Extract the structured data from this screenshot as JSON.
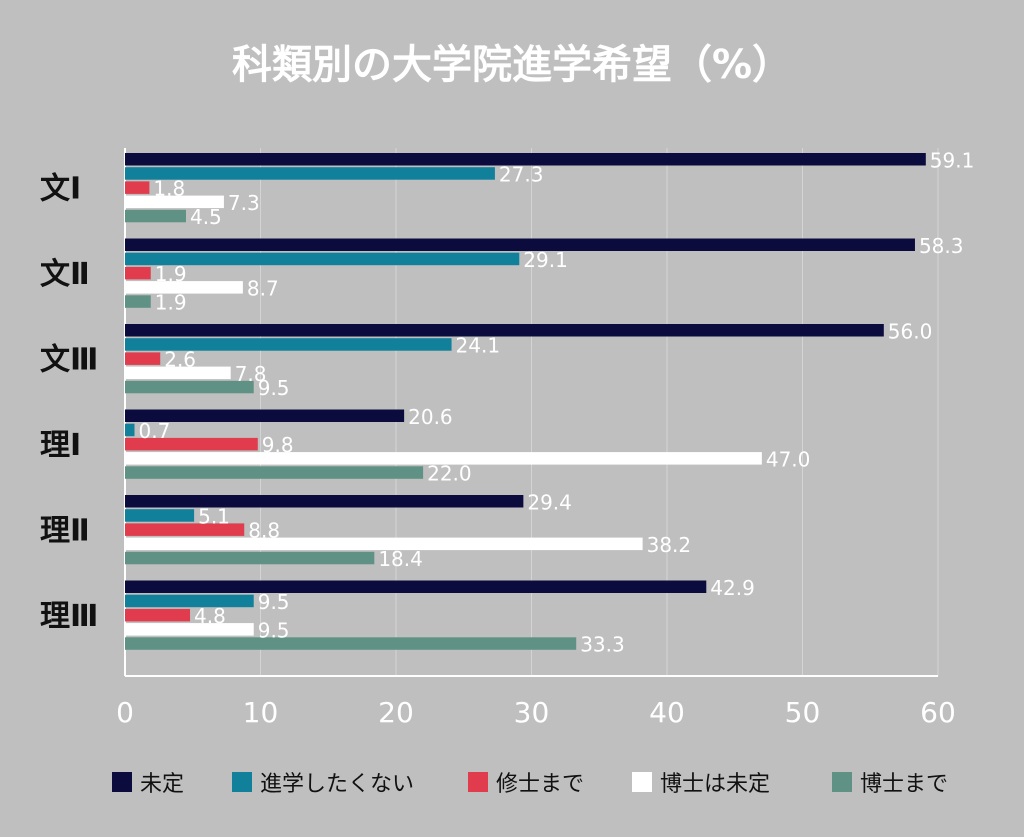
{
  "chart_data": {
    "type": "bar",
    "orientation": "horizontal",
    "title": "科類別の大学院進学希望（%）",
    "categories": [
      "文Ⅰ",
      "文Ⅱ",
      "文Ⅲ",
      "理Ⅰ",
      "理Ⅱ",
      "理Ⅲ"
    ],
    "series": [
      {
        "name": "未定",
        "color": "#0b0b3e",
        "values": [
          59.1,
          58.3,
          56.0,
          20.6,
          29.4,
          42.9
        ]
      },
      {
        "name": "進学したくない",
        "color": "#11809a",
        "values": [
          27.3,
          29.1,
          24.1,
          0.7,
          5.1,
          9.5
        ]
      },
      {
        "name": "修士まで",
        "color": "#e03c4e",
        "values": [
          1.8,
          1.9,
          2.6,
          9.8,
          8.8,
          4.8
        ]
      },
      {
        "name": "博士は未定",
        "color": "#ffffff",
        "values": [
          7.3,
          8.7,
          7.8,
          47.0,
          38.2,
          9.5
        ]
      },
      {
        "name": "博士まで",
        "color": "#5f9284",
        "values": [
          4.5,
          1.9,
          9.5,
          22.0,
          18.4,
          33.3
        ]
      }
    ],
    "xlim": [
      0,
      60
    ],
    "xticks": [
      0,
      10,
      20,
      30,
      40,
      50,
      60
    ],
    "grid": true,
    "legend_position": "bottom"
  }
}
